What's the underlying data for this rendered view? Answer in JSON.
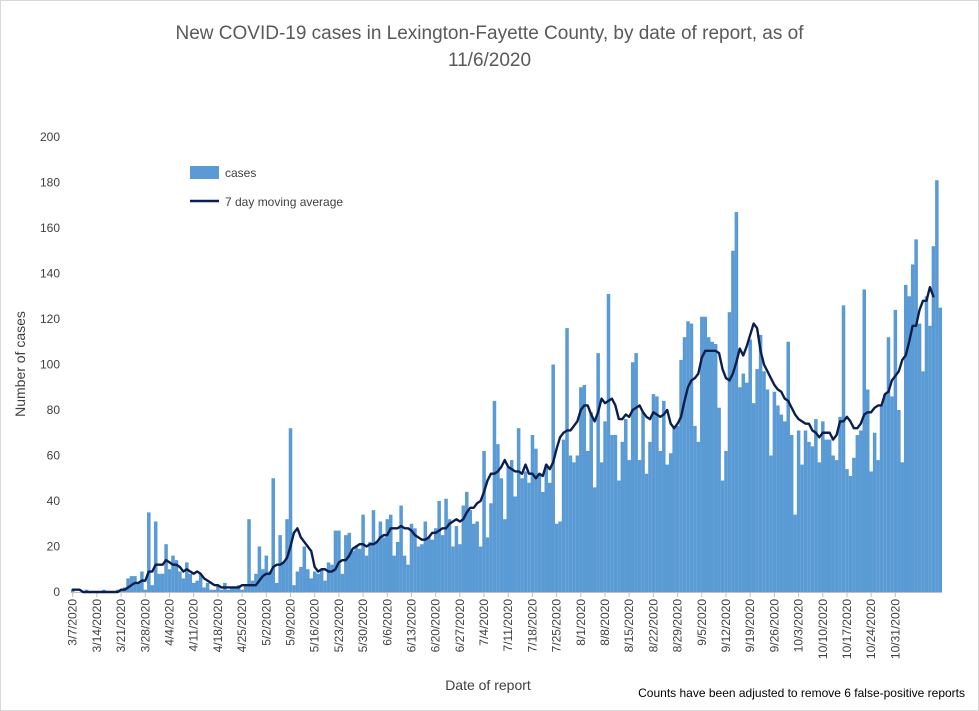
{
  "chart_data": {
    "type": "bar",
    "title": [
      "New COVID-19 cases in Lexington-Fayette County, by date of report, as of",
      "11/6/2020"
    ],
    "xlabel": "Date of report",
    "ylabel": "Number of cases",
    "ylim": [
      0,
      200
    ],
    "yticks": [
      0,
      20,
      40,
      60,
      80,
      100,
      120,
      140,
      160,
      180,
      200
    ],
    "x_start": "3/7/2020",
    "x_tick_labels": [
      "3/7/2020",
      "3/14/2020",
      "3/21/2020",
      "3/28/2020",
      "4/4/2020",
      "4/11/2020",
      "4/18/2020",
      "4/25/2020",
      "5/2/2020",
      "5/9/2020",
      "5/16/2020",
      "5/23/2020",
      "5/30/2020",
      "6/6/2020",
      "6/13/2020",
      "6/20/2020",
      "6/27/2020",
      "7/4/2020",
      "7/11/2020",
      "7/18/2020",
      "7/25/2020",
      "8/1/2020",
      "8/8/2020",
      "8/15/2020",
      "8/22/2020",
      "8/29/2020",
      "9/5/2020",
      "9/12/2020",
      "9/19/2020",
      "9/26/2020",
      "10/3/2020",
      "10/10/2020",
      "10/17/2020",
      "10/24/2020",
      "10/31/2020"
    ],
    "legend": {
      "position": "upper-left",
      "entries": [
        "cases",
        "7 day moving average"
      ]
    },
    "grid": false,
    "colors": {
      "bars": "#5b9bd5",
      "line": "#0b1f4f"
    },
    "series": [
      {
        "name": "cases",
        "values": [
          1,
          0,
          0,
          0,
          1,
          0,
          0,
          0,
          0,
          1,
          0,
          0,
          0,
          1,
          1,
          2,
          6,
          7,
          7,
          4,
          9,
          1,
          35,
          3,
          31,
          8,
          8,
          21,
          10,
          16,
          14,
          9,
          6,
          13,
          8,
          4,
          5,
          8,
          2,
          4,
          1,
          1,
          3,
          1,
          4,
          1,
          2,
          2,
          3,
          1,
          3,
          32,
          5,
          8,
          20,
          10,
          16,
          9,
          50,
          4,
          25,
          13,
          32,
          72,
          3,
          9,
          11,
          20,
          10,
          6,
          9,
          8,
          10,
          5,
          13,
          12,
          27,
          27,
          8,
          25,
          26,
          18,
          20,
          19,
          34,
          16,
          22,
          36,
          22,
          31,
          24,
          32,
          34,
          16,
          22,
          38,
          16,
          12,
          30,
          28,
          20,
          21,
          31,
          24,
          23,
          28,
          40,
          25,
          41,
          32,
          20,
          29,
          21,
          38,
          44,
          36,
          30,
          31,
          20,
          62,
          24,
          39,
          84,
          65,
          50,
          32,
          55,
          58,
          42,
          72,
          50,
          53,
          48,
          69,
          63,
          52,
          44,
          56,
          48,
          100,
          30,
          31,
          67,
          116,
          60,
          57,
          60,
          90,
          91,
          62,
          79,
          46,
          105,
          57,
          75,
          131,
          69,
          69,
          49,
          66,
          76,
          58,
          101,
          105,
          58,
          79,
          52,
          66,
          87,
          86,
          62,
          84,
          56,
          61,
          72,
          73,
          102,
          112,
          119,
          118,
          73,
          66,
          121,
          121,
          112,
          110,
          109,
          81,
          49,
          62,
          123,
          150,
          167,
          90,
          96,
          92,
          111,
          83,
          98,
          113,
          97,
          89,
          60,
          88,
          82,
          78,
          75,
          110,
          69,
          34,
          71,
          56,
          71,
          66,
          64,
          76,
          57,
          75,
          67,
          67,
          60,
          58,
          77,
          126,
          54,
          51,
          59,
          69,
          71,
          133,
          89,
          53,
          70,
          58,
          82,
          87,
          112,
          86,
          124,
          80,
          57,
          135,
          130,
          144,
          155,
          118,
          97,
          130,
          117,
          152,
          181,
          125
        ]
      },
      {
        "name": "7 day moving average",
        "values": [
          1,
          1,
          1,
          0,
          0,
          0,
          0,
          0,
          0,
          0,
          0,
          0,
          0,
          0,
          1,
          1,
          2,
          3,
          4,
          4,
          5,
          5,
          9,
          9,
          12,
          12,
          12,
          14,
          13,
          12,
          12,
          11,
          9,
          10,
          9,
          8,
          9,
          8,
          6,
          5,
          4,
          3,
          3,
          2,
          2,
          2,
          2,
          2,
          2,
          3,
          3,
          3,
          3,
          3,
          5,
          7,
          8,
          8,
          11,
          12,
          12,
          13,
          15,
          20,
          26,
          28,
          24,
          22,
          20,
          18,
          11,
          9,
          10,
          10,
          9,
          9,
          10,
          13,
          14,
          14,
          16,
          19,
          20,
          21,
          21,
          20,
          21,
          21,
          22,
          24,
          25,
          25,
          28,
          28,
          28,
          29,
          28,
          28,
          27,
          25,
          24,
          23,
          23,
          24,
          26,
          26,
          27,
          28,
          28,
          30,
          31,
          32,
          31,
          32,
          35,
          37,
          37,
          39,
          40,
          44,
          49,
          52,
          52,
          53,
          55,
          58,
          55,
          54,
          53,
          53,
          52,
          56,
          52,
          52,
          50,
          52,
          51,
          56,
          54,
          57,
          63,
          68,
          70,
          71,
          71,
          73,
          75,
          80,
          82,
          82,
          78,
          75,
          79,
          85,
          83,
          84,
          85,
          82,
          76,
          76,
          78,
          77,
          80,
          81,
          82,
          79,
          77,
          76,
          79,
          78,
          77,
          78,
          80,
          74,
          72,
          74,
          77,
          84,
          90,
          93,
          94,
          96,
          103,
          106,
          106,
          106,
          106,
          105,
          98,
          94,
          93,
          96,
          101,
          107,
          104,
          108,
          113,
          118,
          116,
          106,
          100,
          97,
          94,
          91,
          89,
          88,
          85,
          84,
          81,
          78,
          76,
          75,
          74,
          74,
          71,
          70,
          68,
          70,
          70,
          70,
          67,
          69,
          75,
          75,
          77,
          75,
          72,
          72,
          74,
          78,
          79,
          79,
          81,
          82,
          82,
          87,
          88,
          93,
          95,
          97,
          102,
          104,
          110,
          117,
          117,
          124,
          128,
          128,
          134,
          130
        ]
      }
    ]
  },
  "footnote": "Counts have been adjusted to remove 6 false-positive reports"
}
